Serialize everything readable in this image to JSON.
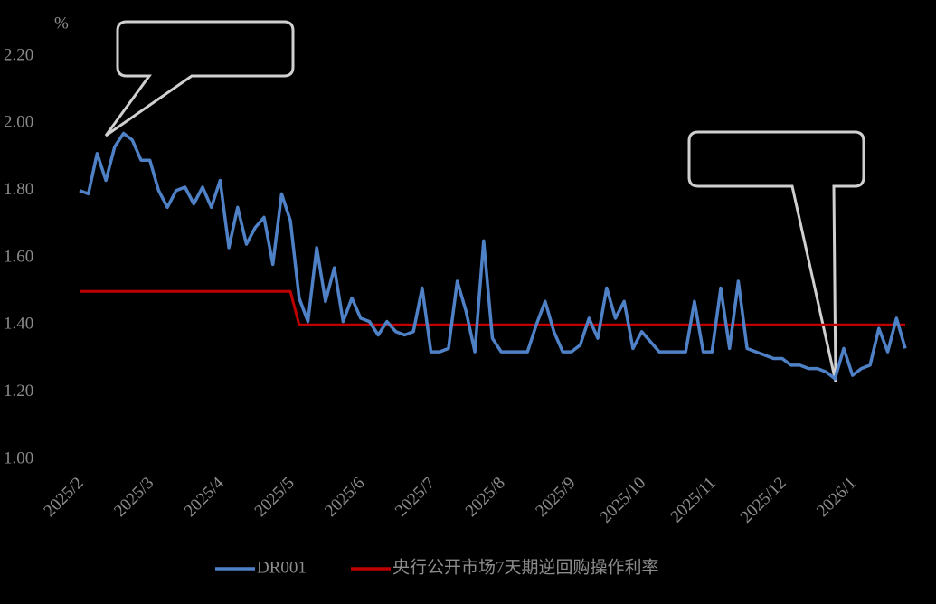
{
  "chart_data": {
    "type": "line",
    "y_axis_label": "%",
    "categories": [
      "2025/2",
      null,
      null,
      null,
      null,
      null,
      null,
      null,
      "2025/3",
      null,
      null,
      null,
      null,
      null,
      null,
      null,
      "2025/4",
      null,
      null,
      null,
      null,
      null,
      null,
      null,
      "2025/5",
      null,
      null,
      null,
      null,
      null,
      null,
      null,
      "2025/6",
      null,
      null,
      null,
      null,
      null,
      null,
      null,
      "2025/7",
      null,
      null,
      null,
      null,
      null,
      null,
      null,
      "2025/8",
      null,
      null,
      null,
      null,
      null,
      null,
      null,
      "2025/9",
      null,
      null,
      null,
      null,
      null,
      null,
      null,
      "2025/10",
      null,
      null,
      null,
      null,
      null,
      null,
      null,
      "2025/11",
      null,
      null,
      null,
      null,
      null,
      null,
      null,
      "2025/12",
      null,
      null,
      null,
      null,
      null,
      null,
      null,
      "2026/1",
      null,
      null,
      null,
      null,
      null,
      null
    ],
    "series": [
      {
        "name": "DR001",
        "color": "#4f81c7",
        "values": [
          1.8,
          1.79,
          1.91,
          1.83,
          1.93,
          1.97,
          1.95,
          1.89,
          1.89,
          1.8,
          1.75,
          1.8,
          1.81,
          1.76,
          1.81,
          1.75,
          1.83,
          1.63,
          1.75,
          1.64,
          1.69,
          1.72,
          1.58,
          1.79,
          1.71,
          1.48,
          1.41,
          1.63,
          1.47,
          1.57,
          1.41,
          1.48,
          1.42,
          1.41,
          1.37,
          1.41,
          1.38,
          1.37,
          1.38,
          1.51,
          1.32,
          1.32,
          1.33,
          1.53,
          1.44,
          1.32,
          1.65,
          1.36,
          1.32,
          1.32,
          1.32,
          1.32,
          1.4,
          1.47,
          1.38,
          1.32,
          1.32,
          1.34,
          1.42,
          1.36,
          1.51,
          1.42,
          1.47,
          1.33,
          1.38,
          1.35,
          1.32,
          1.32,
          1.32,
          1.32,
          1.47,
          1.32,
          1.32,
          1.51,
          1.33,
          1.53,
          1.33,
          1.32,
          1.31,
          1.3,
          1.3,
          1.28,
          1.28,
          1.27,
          1.27,
          1.26,
          1.24,
          1.33,
          1.25,
          1.27,
          1.28,
          1.39,
          1.32,
          1.42,
          1.33
        ]
      },
      {
        "name": "央行公开市场7天期逆回购操作利率",
        "color": "#c00000",
        "values": [
          1.5,
          1.5,
          1.5,
          1.5,
          1.5,
          1.5,
          1.5,
          1.5,
          1.5,
          1.5,
          1.5,
          1.5,
          1.5,
          1.5,
          1.5,
          1.5,
          1.5,
          1.5,
          1.5,
          1.5,
          1.5,
          1.5,
          1.5,
          1.5,
          1.5,
          1.4,
          1.4,
          1.4,
          1.4,
          1.4,
          1.4,
          1.4,
          1.4,
          1.4,
          1.4,
          1.4,
          1.4,
          1.4,
          1.4,
          1.4,
          1.4,
          1.4,
          1.4,
          1.4,
          1.4,
          1.4,
          1.4,
          1.4,
          1.4,
          1.4,
          1.4,
          1.4,
          1.4,
          1.4,
          1.4,
          1.4,
          1.4,
          1.4,
          1.4,
          1.4,
          1.4,
          1.4,
          1.4,
          1.4,
          1.4,
          1.4,
          1.4,
          1.4,
          1.4,
          1.4,
          1.4,
          1.4,
          1.4,
          1.4,
          1.4,
          1.4,
          1.4,
          1.4,
          1.4,
          1.4,
          1.4,
          1.4,
          1.4,
          1.4,
          1.4,
          1.4,
          1.4,
          1.4,
          1.4,
          1.4,
          1.4,
          1.4,
          1.4,
          1.4,
          1.4
        ]
      }
    ],
    "ylim": [
      1.0,
      2.2
    ],
    "yticks": [
      {
        "value": 1.0,
        "label": "1.00"
      },
      {
        "value": 1.2,
        "label": "1.20"
      },
      {
        "value": 1.4,
        "label": "1.40"
      },
      {
        "value": 1.6,
        "label": "1.60"
      },
      {
        "value": 1.8,
        "label": "1.80"
      },
      {
        "value": 2.0,
        "label": "2.00"
      },
      {
        "value": 2.2,
        "label": "2.20"
      }
    ],
    "grid": false,
    "legend": "bottom"
  }
}
